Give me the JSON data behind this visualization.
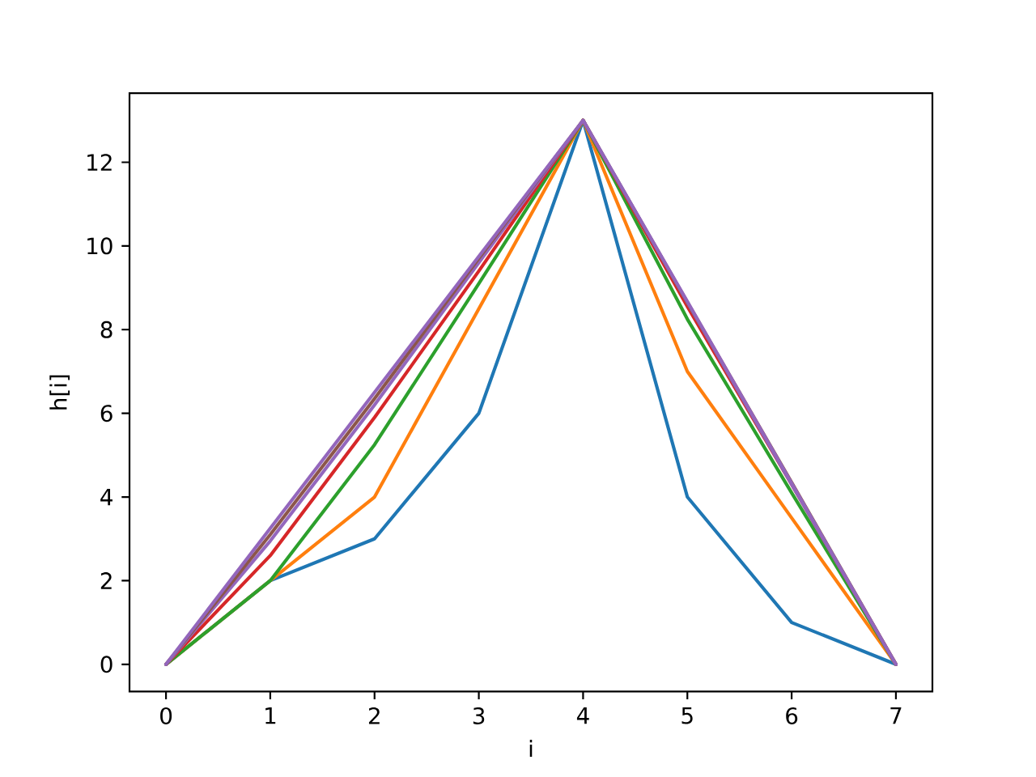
{
  "chart_data": {
    "type": "line",
    "xlabel": "i",
    "ylabel": "h[i]",
    "x": [
      0,
      1,
      2,
      3,
      4,
      5,
      6,
      7
    ],
    "xlim": [
      -0.35,
      7.35
    ],
    "ylim": [
      -0.65,
      13.65
    ],
    "xticks": [
      0,
      1,
      2,
      3,
      4,
      5,
      6,
      7
    ],
    "yticks": [
      0,
      2,
      4,
      6,
      8,
      10,
      12
    ],
    "grid": false,
    "legend": false,
    "marker": "none",
    "line_style": "solid",
    "series": [
      {
        "color": "#1f77b4",
        "values": [
          0,
          2,
          3,
          6,
          13,
          4,
          1,
          0
        ]
      },
      {
        "color": "#ff7f0e",
        "values": [
          0,
          2,
          4,
          8.5,
          13,
          7,
          3.5,
          0
        ]
      },
      {
        "color": "#2ca02c",
        "values": [
          0,
          2,
          5.25,
          9.1,
          13,
          8.25,
          4.1,
          0
        ]
      },
      {
        "color": "#d62728",
        "values": [
          0,
          2.6,
          5.9,
          9.4,
          13,
          8.55,
          4.3,
          0
        ]
      },
      {
        "color": "#9467bd",
        "values": [
          0,
          2.95,
          6.2,
          9.6,
          13,
          8.65,
          4.3,
          0
        ]
      },
      {
        "color": "#8c564b",
        "values": [
          0,
          3.1,
          6.35,
          9.7,
          13,
          8.65,
          4.35,
          0
        ]
      },
      {
        "color": "#9366bc",
        "values": [
          0,
          3.25,
          6.5,
          9.75,
          13,
          8.67,
          4.33,
          0
        ]
      }
    ]
  }
}
